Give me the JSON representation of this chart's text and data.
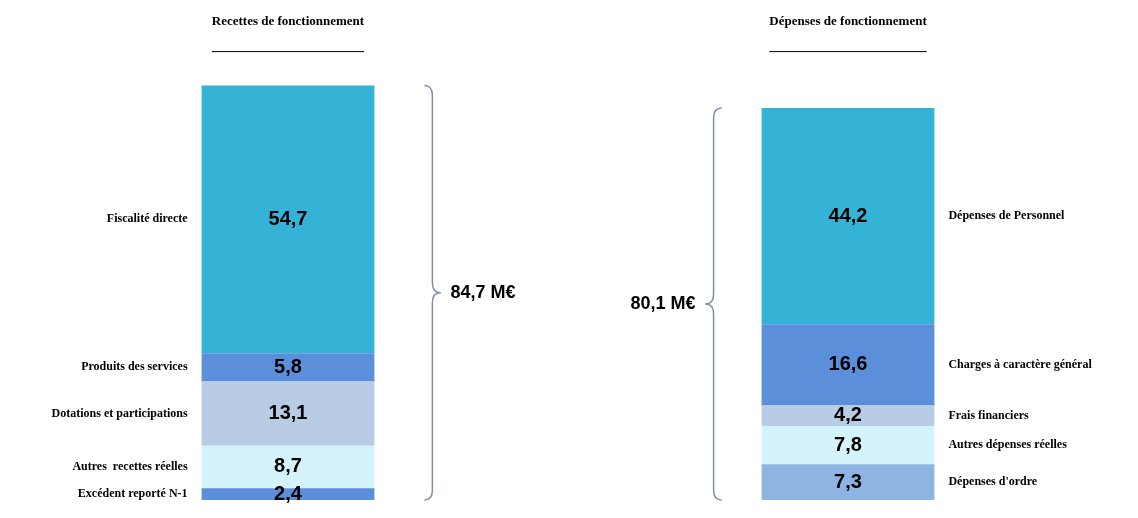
{
  "chart_data": [
    {
      "type": "bar",
      "title": "Recettes de fonctionnement",
      "categories": [
        null
      ],
      "stacked": true,
      "annotations": [
        "84,7 M€"
      ],
      "series": [
        {
          "name": "Excédent reporté N-1",
          "color": "#5b8fd9",
          "values": [
            2.4
          ],
          "value_labels": [
            "2,4"
          ]
        },
        {
          "name": "Autres  recettes réelles",
          "color": "#d4f3fb",
          "values": [
            8.7
          ],
          "value_labels": [
            "8,7"
          ]
        },
        {
          "name": "Dotations et participations",
          "color": "#b8cce4",
          "values": [
            13.1
          ],
          "value_labels": [
            "13,1"
          ]
        },
        {
          "name": "Produits des services",
          "color": "#5b8fd9",
          "values": [
            5.8
          ],
          "value_labels": [
            "5,8"
          ]
        },
        {
          "name": "Fiscalité directe",
          "color": "#35b3d6",
          "values": [
            54.7
          ],
          "value_labels": [
            "54,7"
          ]
        }
      ]
    },
    {
      "type": "bar",
      "title": "Dépenses de fonctionnement",
      "categories": [
        null
      ],
      "stacked": true,
      "annotations": [
        "80,1 M€"
      ],
      "series": [
        {
          "name": "Dépenses d'ordre",
          "color": "#8eb4e3",
          "values": [
            7.3
          ],
          "value_labels": [
            "7,3"
          ]
        },
        {
          "name": "Autres dépenses réelles",
          "color": "#d4f3fb",
          "values": [
            7.8
          ],
          "value_labels": [
            "7,8"
          ]
        },
        {
          "name": "Frais financiers",
          "color": "#b8cce4",
          "values": [
            4.2
          ],
          "value_labels": [
            "4,2"
          ]
        },
        {
          "name": "Charges à caractère général",
          "color": "#5b8fd9",
          "values": [
            16.6
          ],
          "value_labels": [
            "16,6"
          ]
        },
        {
          "name": "Dépenses de Personnel",
          "color": "#35b3d6",
          "values": [
            44.2
          ],
          "value_labels": [
            "44,2"
          ]
        }
      ]
    }
  ]
}
